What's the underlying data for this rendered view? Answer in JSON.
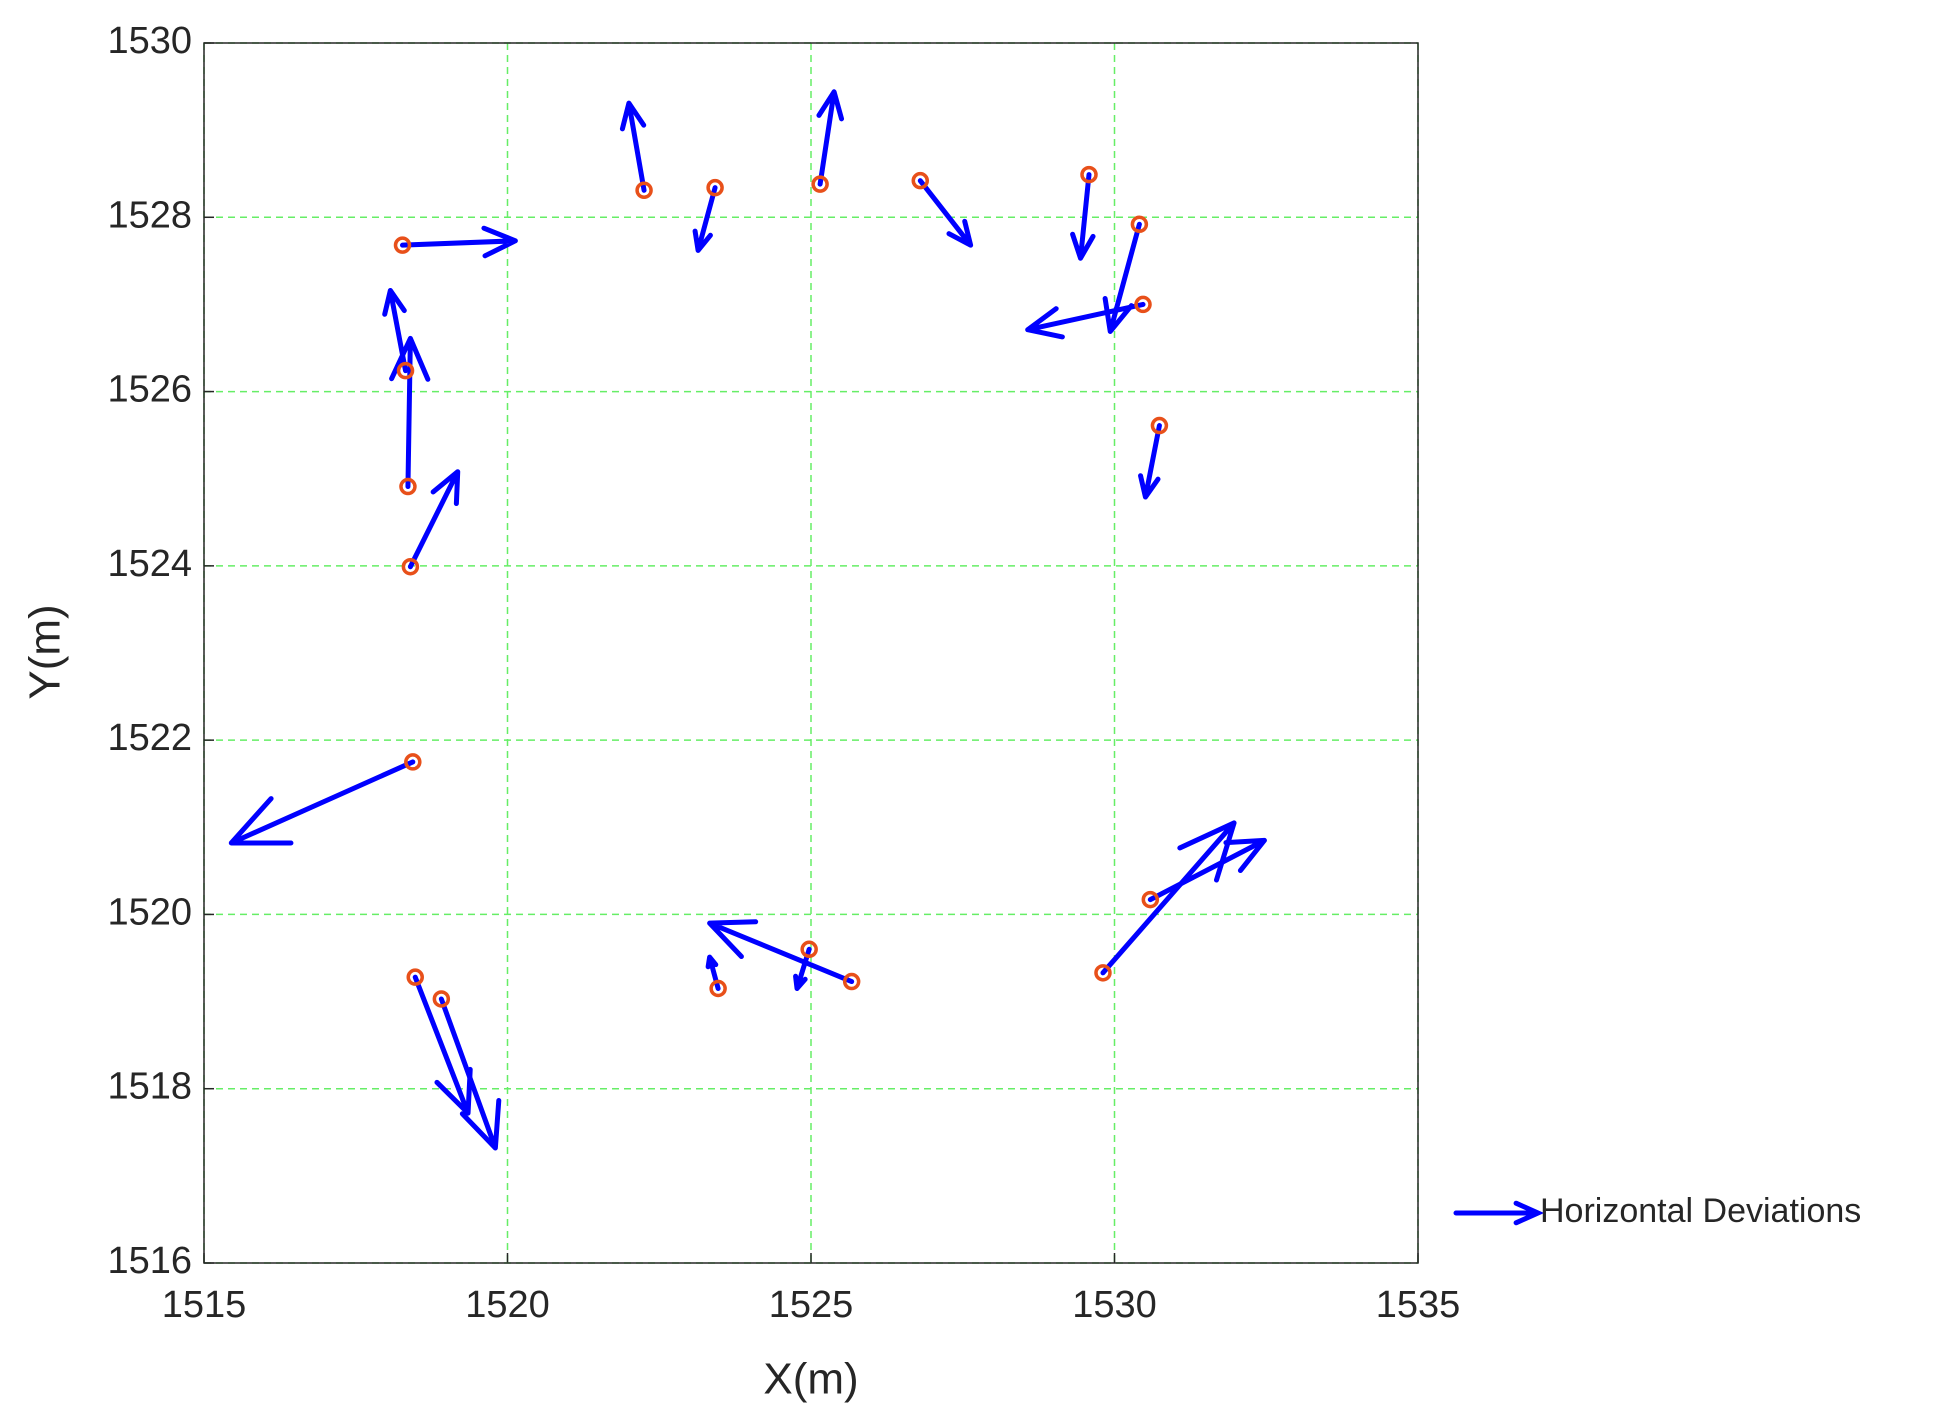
{
  "chart_data": {
    "type": "quiver",
    "xlabel": "X(m)",
    "ylabel": "Y(m)",
    "xlim": [
      1515,
      1535
    ],
    "xticks": [
      1515,
      1520,
      1525,
      1530,
      1535
    ],
    "ylim": [
      1516,
      1530
    ],
    "yticks": [
      1516,
      1518,
      1520,
      1522,
      1524,
      1526,
      1528,
      1530
    ],
    "grid": true,
    "grid_color": "#66ee66",
    "legend": "east-outside",
    "series": [
      {
        "name": "Horizontal Deviations",
        "color": "#0000ff",
        "marker_color": "#e8501a",
        "x": [
          1518.27,
          1522.25,
          1523.42,
          1525.15,
          1526.8,
          1529.58,
          1530.41,
          1530.47,
          1518.32,
          1530.74,
          1518.36,
          1518.4,
          1518.44,
          1518.48,
          1518.91,
          1523.47,
          1524.97,
          1525.67,
          1529.81,
          1530.59
        ],
        "y": [
          1527.68,
          1528.31,
          1528.34,
          1528.38,
          1528.42,
          1528.49,
          1527.92,
          1527.0,
          1526.24,
          1525.61,
          1524.91,
          1523.99,
          1521.75,
          1519.28,
          1519.03,
          1519.15,
          1519.6,
          1519.23,
          1519.33,
          1520.17
        ],
        "u": [
          1.86,
          -0.25,
          -0.28,
          0.23,
          0.83,
          -0.14,
          -0.48,
          -1.9,
          -0.25,
          -0.23,
          0.04,
          0.78,
          -2.99,
          0.87,
          0.89,
          -0.14,
          -0.2,
          -2.34,
          2.16,
          1.88
        ],
        "v": [
          0.05,
          1.0,
          -0.72,
          1.06,
          -0.74,
          -0.96,
          -1.23,
          -0.29,
          0.92,
          -0.82,
          1.7,
          1.09,
          -0.93,
          -1.56,
          -1.71,
          0.36,
          -0.45,
          0.67,
          1.72,
          0.68
        ]
      }
    ]
  }
}
